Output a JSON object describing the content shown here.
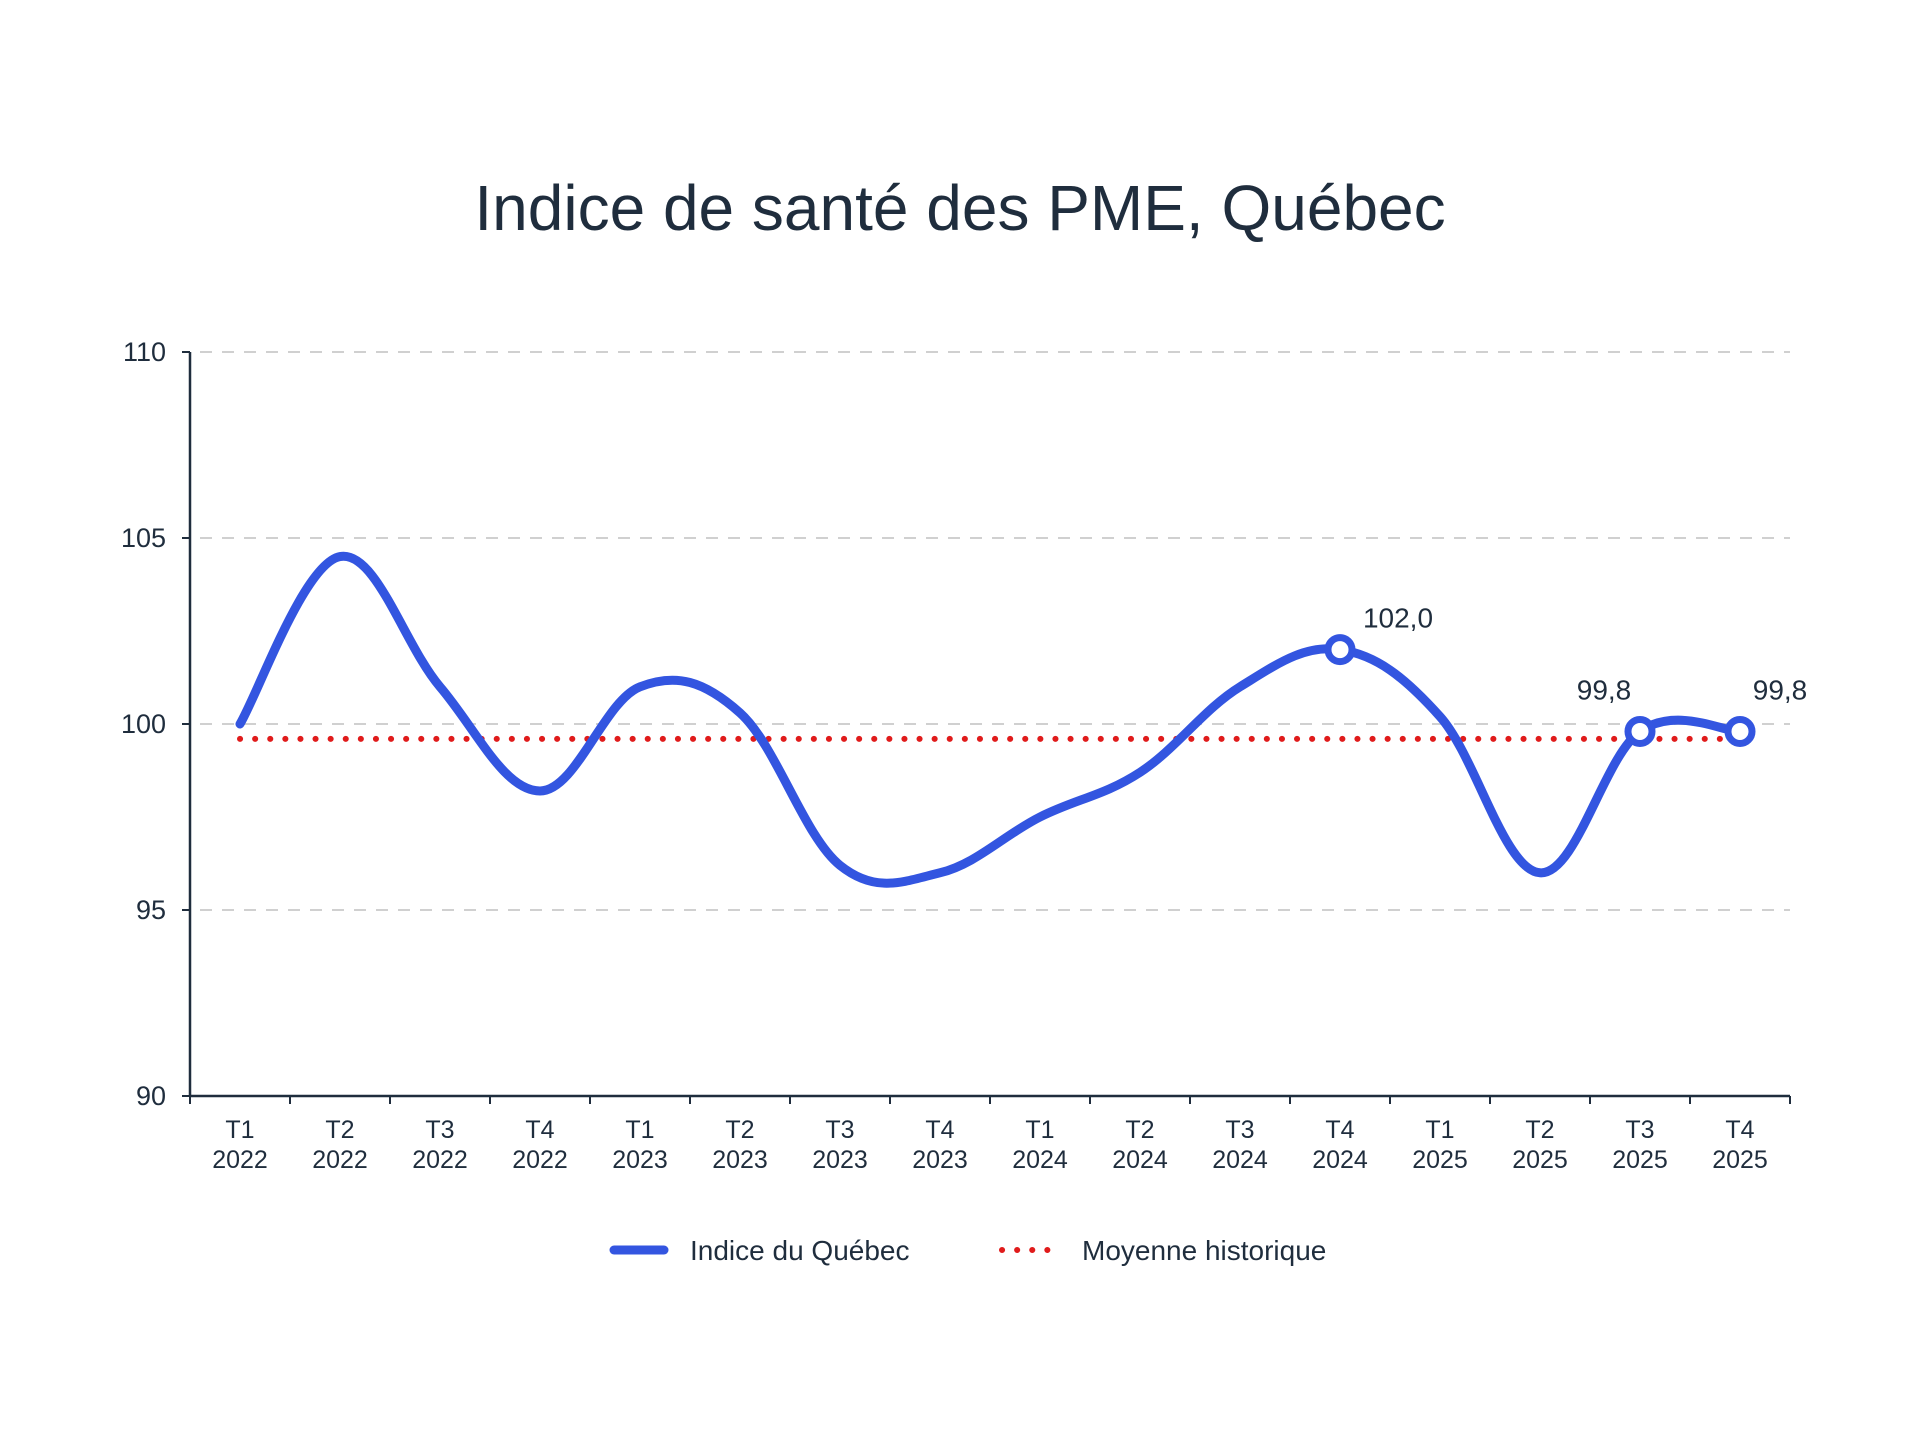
{
  "chart_data": {
    "type": "line",
    "title": "Indice de santé des PME, Québec",
    "xlabel": "",
    "ylabel": "",
    "ylim": [
      90,
      110
    ],
    "yticks": [
      "90",
      "95",
      "100",
      "105",
      "110"
    ],
    "grid": true,
    "legend_position": "bottom",
    "categories": [
      [
        "T1",
        "2022"
      ],
      [
        "T2",
        "2022"
      ],
      [
        "T3",
        "2022"
      ],
      [
        "T4",
        "2022"
      ],
      [
        "T1",
        "2023"
      ],
      [
        "T2",
        "2023"
      ],
      [
        "T3",
        "2023"
      ],
      [
        "T4",
        "2023"
      ],
      [
        "T1",
        "2024"
      ],
      [
        "T2",
        "2024"
      ],
      [
        "T3",
        "2024"
      ],
      [
        "T4",
        "2024"
      ],
      [
        "T1",
        "2025"
      ],
      [
        "T2",
        "2025"
      ],
      [
        "T3",
        "2025"
      ],
      [
        "T4",
        "2025"
      ]
    ],
    "series": [
      {
        "name": "Indice du Québec",
        "color": "#3355e0",
        "style": "solid",
        "values": [
          100.0,
          104.5,
          101.0,
          98.2,
          101.0,
          100.3,
          96.2,
          96.0,
          97.5,
          98.7,
          101.0,
          102.0,
          100.2,
          96.0,
          99.8,
          99.8
        ],
        "markers": [
          11,
          14,
          15
        ],
        "data_labels": [
          {
            "index": 11,
            "text": "102,0"
          },
          {
            "index": 14,
            "text": "99,8"
          },
          {
            "index": 15,
            "text": "99,8"
          }
        ]
      },
      {
        "name": "Moyenne historique",
        "color": "#e01b1b",
        "style": "dotted",
        "values": [
          99.6,
          99.6,
          99.6,
          99.6,
          99.6,
          99.6,
          99.6,
          99.6,
          99.6,
          99.6,
          99.6,
          99.6,
          99.6,
          99.6,
          99.6,
          99.6
        ]
      }
    ],
    "colors": {
      "axis": "#1f2d3d",
      "grid": "#d0d0d0",
      "text": "#1f2d3d"
    }
  }
}
